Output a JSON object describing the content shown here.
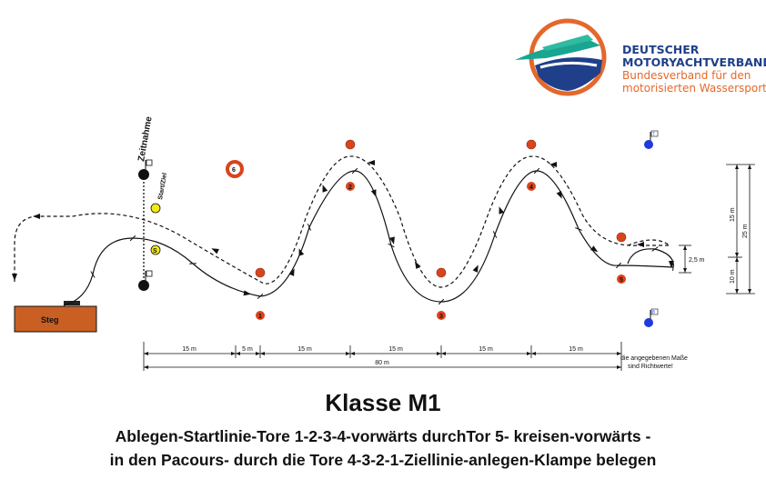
{
  "logo": {
    "line1": "DEUTSCHER",
    "line2": "MOTORYACHTVERBAND",
    "line3": "Bundesverband für den",
    "line4": "motorisierten Wassersport",
    "colors": {
      "ring": "#e4682b",
      "navy": "#1f3f8a",
      "teal": "#1aa591"
    }
  },
  "course": {
    "zeitnahme_label": "Zeitnahme",
    "startziel_label": "Start/Ziel",
    "steg_label": "Steg",
    "gates": {
      "g1": "1",
      "g2": "2",
      "g3": "3",
      "g4": "4",
      "g5": "5",
      "g6": "6",
      "g7": "7",
      "g8": "8",
      "gS": "S"
    },
    "dims_bottom": {
      "d1": "15 m",
      "d2": "5 m",
      "d3": "15 m",
      "d4": "15 m",
      "d5": "15 m",
      "d6": "15 m",
      "total": "80 m"
    },
    "dims_right": {
      "v15": "15 m",
      "v25": "25 m",
      "v10": "10 m",
      "v25b": "2,5 m"
    },
    "note_line1": "die angegebenen Maße",
    "note_line2": "sind Richtwerte!",
    "colors": {
      "buoy": "#d9441c",
      "buoy_yellow": "#f2ea16",
      "blue": "#1f3ae0",
      "steg": "#c95f22"
    }
  },
  "title": "Klasse M1",
  "description": {
    "line1": "Ablegen-Startlinie-Tore 1-2-3-4-vorwärts durchTor 5- kreisen-vorwärts -",
    "line2": "in den Pacours- durch die Tore 4-3-2-1-Ziellinie-anlegen-Klampe belegen"
  }
}
